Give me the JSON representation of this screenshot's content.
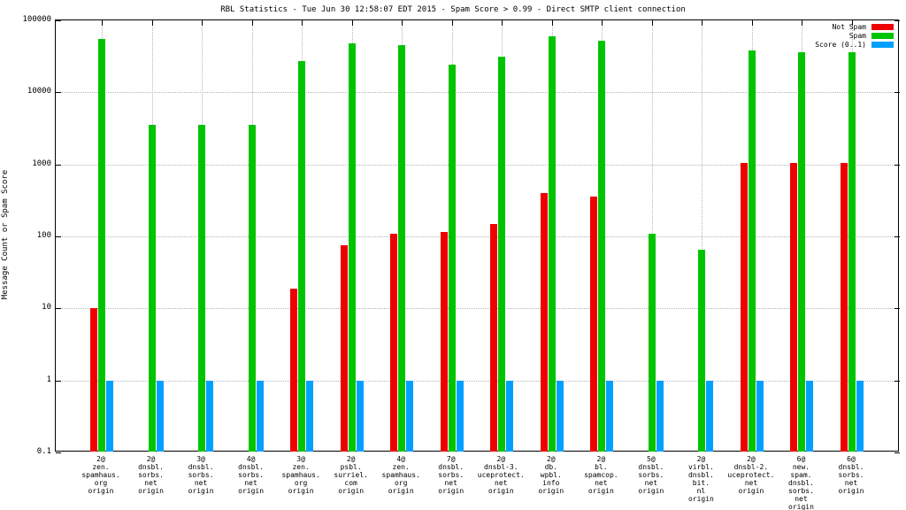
{
  "title": "RBL Statistics - Tue Jun 30 12:58:07 EDT 2015 - Spam Score > 0.99 - Direct SMTP client connection",
  "ylabel": "Message Count or Spam Score",
  "legend": [
    {
      "label": "Not Spam",
      "color": "#ee0000"
    },
    {
      "label": "Spam",
      "color": "#00c400"
    },
    {
      "label": "Score (0..1)",
      "color": "#00a0ff"
    }
  ],
  "chart_data": {
    "type": "bar",
    "scale": "log",
    "title": "RBL Statistics - Tue Jun 30 12:58:07 EDT 2015 - Spam Score > 0.99 - Direct SMTP client connection",
    "xlabel": "",
    "ylabel": "Message Count or Spam Score",
    "ylim": [
      0.1,
      100000
    ],
    "ytick_labels": [
      "100000",
      "10000",
      "1000",
      "100",
      "10",
      "1",
      "0.1"
    ],
    "grid": true,
    "legend_position": "top-right",
    "categories": [
      [
        "2@",
        "zen.",
        "spamhaus.",
        "org",
        "origin"
      ],
      [
        "2@",
        "dnsbl.",
        "sorbs.",
        "net",
        "origin"
      ],
      [
        "3@",
        "dnsbl.",
        "sorbs.",
        "net",
        "origin"
      ],
      [
        "4@",
        "dnsbl.",
        "sorbs.",
        "net",
        "origin"
      ],
      [
        "3@",
        "zen.",
        "spamhaus.",
        "org",
        "origin"
      ],
      [
        "2@",
        "psbl.",
        "surriel.",
        "com",
        "origin"
      ],
      [
        "4@",
        "zen.",
        "spamhaus.",
        "org",
        "origin"
      ],
      [
        "7@",
        "dnsbl.",
        "sorbs.",
        "net",
        "origin"
      ],
      [
        "2@",
        "dnsbl-3.",
        "uceprotect.",
        "net",
        "origin"
      ],
      [
        "2@",
        "db.",
        "wpbl.",
        "info",
        "origin"
      ],
      [
        "2@",
        "bl.",
        "spamcop.",
        "net",
        "origin"
      ],
      [
        "5@",
        "dnsbl.",
        "sorbs.",
        "net",
        "origin"
      ],
      [
        "2@",
        "virbl.",
        "dnsbl.",
        "bit.",
        "nl",
        "origin"
      ],
      [
        "2@",
        "dnsbl-2.",
        "uceprotect.",
        "net",
        "origin"
      ],
      [
        "6@",
        "new.",
        "spam.",
        "dnsbl.",
        "sorbs.",
        "net",
        "origin"
      ],
      [
        "6@",
        "dnsbl.",
        "sorbs.",
        "net",
        "origin"
      ]
    ],
    "series": [
      {
        "name": "Not Spam",
        "color": "#ee0000",
        "values": [
          10,
          null,
          null,
          null,
          19,
          75,
          110,
          115,
          150,
          400,
          360,
          null,
          null,
          1050,
          1050,
          1050
        ]
      },
      {
        "name": "Spam",
        "color": "#00c400",
        "values": [
          55000,
          3500,
          3500,
          3500,
          27000,
          48000,
          45000,
          24000,
          31000,
          60000,
          52000,
          110,
          65,
          38000,
          36000,
          36000
        ]
      },
      {
        "name": "Score (0..1)",
        "color": "#00a0ff",
        "values": [
          1,
          1,
          1,
          1,
          1,
          1,
          1,
          1,
          1,
          1,
          1,
          1,
          1,
          1,
          1,
          1
        ]
      }
    ]
  }
}
